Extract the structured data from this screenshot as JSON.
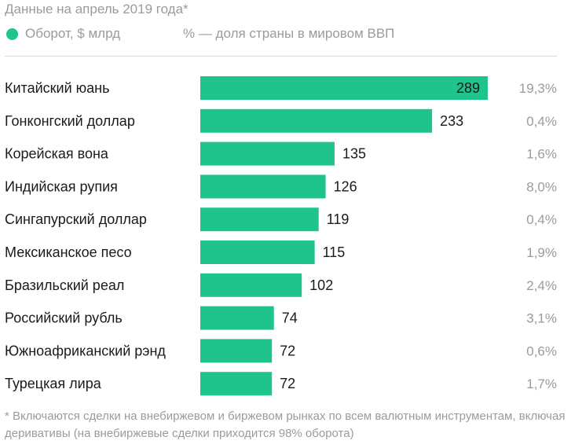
{
  "header": {
    "subtitle": "Данные на апрель 2019 года*",
    "legend_series": "Оборот, $ млрд",
    "legend_share": "% — доля страны в мировом ВВП"
  },
  "colors": {
    "bar": "#1ec48c",
    "text": "#1a1a1a",
    "muted": "#9b9b9b"
  },
  "chart_data": {
    "type": "bar",
    "orientation": "horizontal",
    "categories": [
      "Китайский юань",
      "Гонконгский доллар",
      "Корейская вона",
      "Индийская рупия",
      "Сингапурский доллар",
      "Мексиканское песо",
      "Бразильский реал",
      "Российский рубль",
      "Южноафриканский рэнд",
      "Турецкая лира"
    ],
    "series": [
      {
        "name": "Оборот, $ млрд",
        "values": [
          289,
          233,
          135,
          126,
          119,
          115,
          102,
          74,
          72,
          72
        ]
      }
    ],
    "gdp_share": [
      "19,3%",
      "0,4%",
      "1,6%",
      "8,0%",
      "0,4%",
      "1,9%",
      "2,4%",
      "3,1%",
      "0,6%",
      "1,7%"
    ],
    "xlim": [
      0,
      300
    ],
    "grid": false
  },
  "footnote": "* Включаются сделки на внебиржевом и биржевом рынках по всем валютным инструментам, включая деривативы (на внебиржевые сделки приходится 98% оборота)"
}
